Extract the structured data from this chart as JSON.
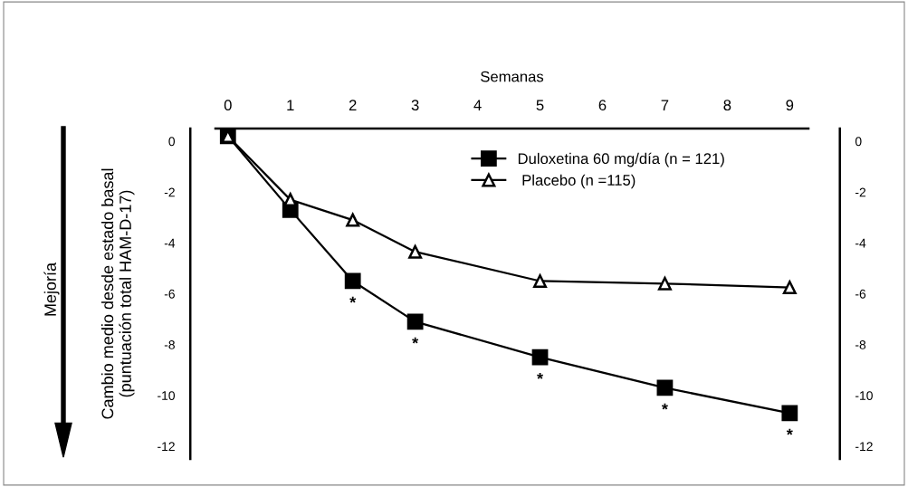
{
  "chart_data": {
    "type": "line",
    "xlabel": "Semanas",
    "ylabel": "Cambio medio desde estado basal\n(puntuación total HAM-D-17)",
    "x": [
      0,
      1,
      2,
      3,
      5,
      7,
      9
    ],
    "series": [
      {
        "name": "Duloxetina 60 mg/día (n = 121)",
        "color": "#000000",
        "marker": "square",
        "values": [
          0.2,
          -2.7,
          -5.5,
          -7.1,
          -8.5,
          -9.7,
          -10.7
        ]
      },
      {
        "name": " Placebo (n =115)",
        "color": "#000000",
        "marker": "triangle",
        "values": [
          0.2,
          -2.3,
          -3.1,
          -4.35,
          -5.5,
          -5.6,
          -5.75
        ]
      }
    ],
    "xlim": [
      -0.2,
      9.3
    ],
    "xticks": [
      0,
      1,
      2,
      3,
      4,
      5,
      6,
      7,
      8,
      9
    ],
    "ylim": [
      -12.5,
      0.5
    ],
    "yticks": [
      0,
      -2,
      -4,
      -6,
      -8,
      -10,
      -12
    ],
    "y2lim": [
      -12.5,
      0.5
    ],
    "y2ticks": [
      0,
      -2,
      -4,
      -6,
      -8,
      -10,
      -12
    ],
    "annotations": [
      "Mejoría",
      {
        "text": "*",
        "x": 2,
        "y": -5.5
      },
      {
        "text": "*",
        "x": 3,
        "y": -7.1
      },
      {
        "text": "*",
        "x": 5,
        "y": -8.5
      },
      {
        "text": "*",
        "x": 7,
        "y": -9.7
      },
      {
        "text": "*",
        "x": 9,
        "y": -10.7
      }
    ],
    "legend": "top right",
    "grid": false,
    "line_style": "solid"
  }
}
